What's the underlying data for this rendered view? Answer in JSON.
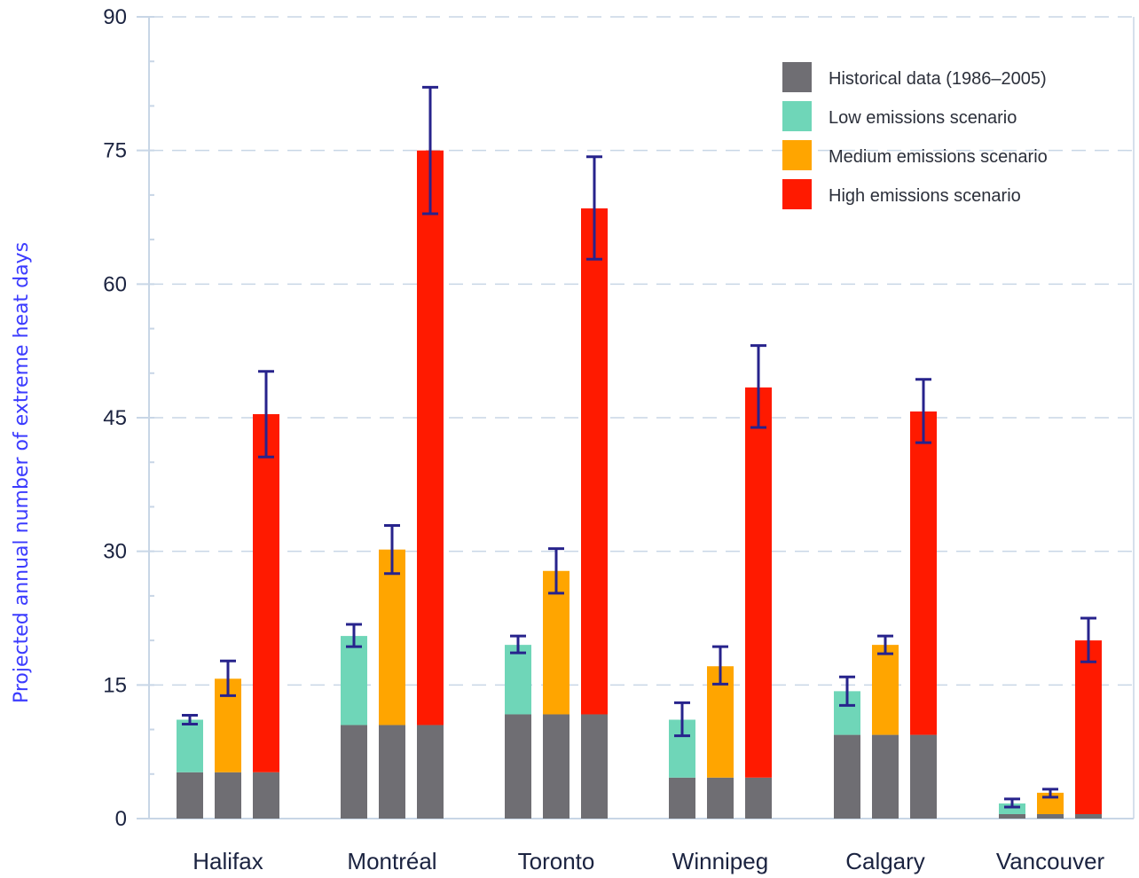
{
  "chart_data": {
    "type": "bar",
    "ylabel": "Projected annual number of extreme heat days",
    "ylim": [
      0,
      90
    ],
    "yticks": [
      0,
      15,
      30,
      45,
      60,
      75,
      90
    ],
    "grid": "horizontal dashed",
    "legend_position": "top-right",
    "categories": [
      "Halifax",
      "Montréal",
      "Toronto",
      "Winnipeg",
      "Calgary",
      "Vancouver"
    ],
    "historical": {
      "name": "Historical data (1986–2005)",
      "color": "#6f6e73",
      "values": [
        5.2,
        10.5,
        11.7,
        4.6,
        9.4,
        0.5
      ]
    },
    "series": [
      {
        "name": "Low emissions scenario",
        "color": "#6fd6b8",
        "values": [
          11.1,
          20.5,
          19.5,
          11.1,
          14.3,
          1.7
        ],
        "error_low": [
          10.6,
          19.3,
          18.6,
          9.3,
          12.7,
          1.3
        ],
        "error_high": [
          11.6,
          21.8,
          20.5,
          13.0,
          15.9,
          2.2
        ]
      },
      {
        "name": "Medium emissions scenario",
        "color": "#ffa500",
        "values": [
          15.7,
          30.2,
          27.8,
          17.1,
          19.5,
          2.9
        ],
        "error_low": [
          13.8,
          27.5,
          25.3,
          15.1,
          18.5,
          2.4
        ],
        "error_high": [
          17.7,
          32.9,
          30.3,
          19.3,
          20.5,
          3.3
        ]
      },
      {
        "name": "High emissions scenario",
        "color": "#ff1a00",
        "values": [
          45.4,
          75.0,
          68.5,
          48.4,
          45.7,
          20.0
        ],
        "error_low": [
          40.6,
          67.9,
          62.8,
          43.9,
          42.2,
          17.6
        ],
        "error_high": [
          50.2,
          82.1,
          74.3,
          53.1,
          49.3,
          22.5
        ]
      }
    ],
    "colors": {
      "axis": "#c8d6e6",
      "grid": "#c8d6e6",
      "error_bar": "#27238c",
      "ylabel": "#3b3bff"
    }
  }
}
